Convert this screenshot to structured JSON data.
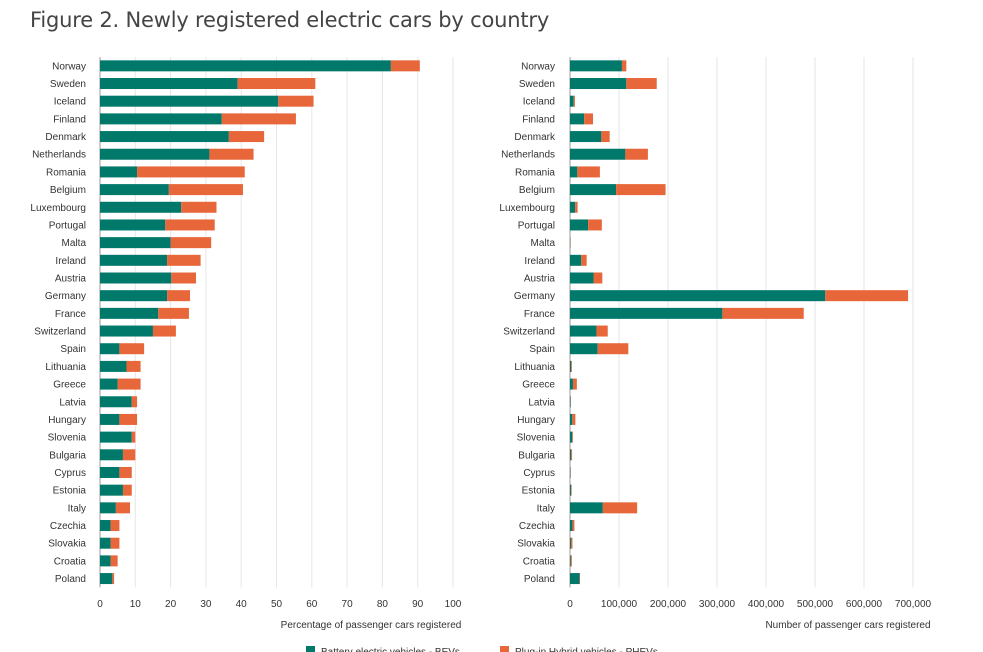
{
  "page": {
    "title": "Figure 2. Newly registered electric cars by country"
  },
  "colors": {
    "bev": "#00796b",
    "phev": "#e8673a"
  },
  "legend": {
    "bev": "Battery electric vehicles - BEVs",
    "phev": "Plug-in Hybrid vehicles - PHEVs"
  },
  "chart_data": [
    {
      "type": "bar",
      "orientation": "horizontal",
      "stacked": true,
      "title": "",
      "xlabel": "Percentage of passenger cars registered",
      "ylabel": "",
      "xlim": [
        0,
        100
      ],
      "xticks": [
        0,
        10,
        20,
        30,
        40,
        50,
        60,
        70,
        80,
        90,
        100
      ],
      "xtick_labels": [
        "0",
        "10",
        "20",
        "30",
        "40",
        "50",
        "60",
        "70",
        "80",
        "90",
        "100"
      ],
      "grid": true,
      "categories": [
        "Norway",
        "Sweden",
        "Iceland",
        "Finland",
        "Denmark",
        "Netherlands",
        "Romania",
        "Belgium",
        "Luxembourg",
        "Portugal",
        "Malta",
        "Ireland",
        "Austria",
        "Germany",
        "France",
        "Switzerland",
        "Spain",
        "Lithuania",
        "Greece",
        "Latvia",
        "Hungary",
        "Slovenia",
        "Bulgaria",
        "Cyprus",
        "Estonia",
        "Italy",
        "Czechia",
        "Slovakia",
        "Croatia",
        "Poland"
      ],
      "series": [
        {
          "name": "Battery electric vehicles - BEVs",
          "values": [
            82.4,
            39,
            50.5,
            34.5,
            36.5,
            31,
            10.5,
            19.5,
            23,
            18.5,
            20,
            19,
            20.2,
            19,
            16.5,
            15,
            5.5,
            7.5,
            5,
            9,
            5.5,
            9,
            6.5,
            5.5,
            6.5,
            4.5,
            3,
            3,
            3,
            3.5
          ]
        },
        {
          "name": "Plug-in Hybrid vehicles - PHEVs",
          "values": [
            8.2,
            22,
            10,
            21,
            10,
            12.5,
            30.5,
            21,
            10,
            14,
            11.5,
            9.5,
            7,
            6.5,
            8.7,
            6.5,
            7,
            4,
            6.5,
            1.5,
            5,
            1,
            3.5,
            3.5,
            2.5,
            4,
            2.5,
            2.5,
            2,
            0.5
          ]
        }
      ]
    },
    {
      "type": "bar",
      "orientation": "horizontal",
      "stacked": true,
      "title": "",
      "xlabel": "Number of passenger cars registered",
      "ylabel": "",
      "xlim": [
        0,
        700000
      ],
      "xticks": [
        0,
        100000,
        200000,
        300000,
        400000,
        500000,
        600000,
        700000
      ],
      "xtick_labels": [
        "0",
        "100,000",
        "200,000",
        "300,000",
        "400,000",
        "500,000",
        "600,000",
        "700,000"
      ],
      "grid": true,
      "categories": [
        "Norway",
        "Sweden",
        "Iceland",
        "Finland",
        "Denmark",
        "Netherlands",
        "Romania",
        "Belgium",
        "Luxembourg",
        "Portugal",
        "Malta",
        "Ireland",
        "Austria",
        "Germany",
        "France",
        "Switzerland",
        "Spain",
        "Lithuania",
        "Greece",
        "Latvia",
        "Hungary",
        "Slovenia",
        "Bulgaria",
        "Cyprus",
        "Estonia",
        "Italy",
        "Czechia",
        "Slovakia",
        "Croatia",
        "Poland"
      ],
      "series": [
        {
          "name": "Battery electric vehicles - BEVs",
          "values": [
            106000,
            115000,
            7500,
            29000,
            64000,
            113000,
            15000,
            94000,
            10500,
            37000,
            700,
            23000,
            48000,
            521000,
            311000,
            54000,
            56500,
            2500,
            6000,
            1200,
            4700,
            4500,
            2200,
            800,
            2300,
            67000,
            5000,
            2000,
            1800,
            19500
          ]
        },
        {
          "name": "Plug-in Hybrid vehicles - PHEVs",
          "values": [
            9000,
            62000,
            2500,
            18000,
            17000,
            46000,
            46000,
            101000,
            5000,
            28000,
            500,
            11000,
            18000,
            169000,
            166000,
            23000,
            62500,
            1500,
            8000,
            500,
            6300,
            1500,
            2000,
            700,
            1200,
            70000,
            4000,
            3000,
            2000,
            1000
          ]
        }
      ]
    }
  ]
}
